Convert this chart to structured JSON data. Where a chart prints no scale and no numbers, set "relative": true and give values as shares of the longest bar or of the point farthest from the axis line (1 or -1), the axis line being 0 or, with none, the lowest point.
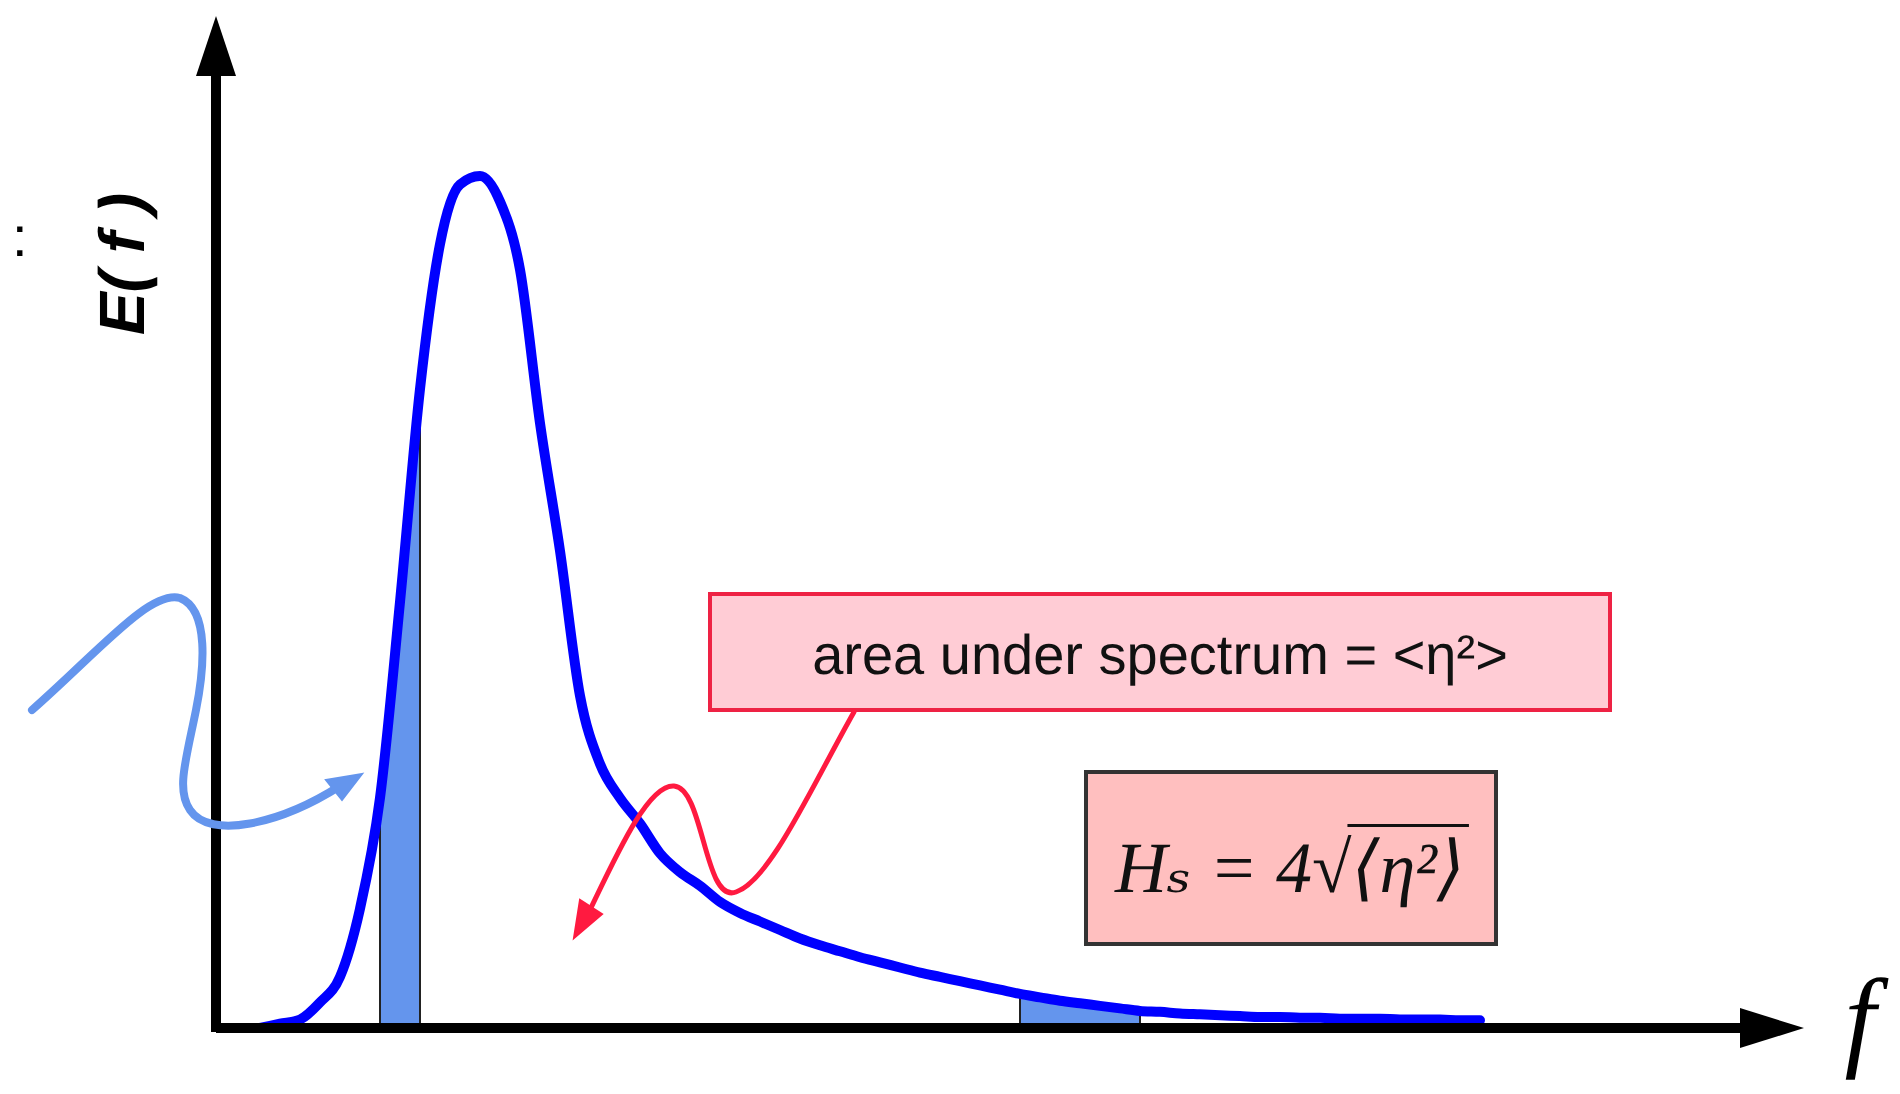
{
  "chart_data": {
    "type": "line",
    "relative": true,
    "xlabel": "f",
    "ylabel": "E( f )",
    "categories": [
      null,
      null,
      null,
      null,
      null,
      null,
      null,
      null,
      null,
      null,
      null,
      null,
      null,
      null,
      null,
      null,
      null,
      null,
      null,
      null,
      null,
      null,
      null,
      null,
      null,
      null,
      null,
      null,
      null,
      null,
      null,
      null,
      null,
      null,
      null,
      null,
      null,
      null,
      null,
      null,
      null,
      null,
      null,
      null,
      null,
      null,
      null,
      null,
      null,
      null,
      null,
      null,
      null,
      null,
      null,
      null,
      null,
      null,
      null,
      null,
      null,
      null
    ],
    "series": [
      {
        "color": "#0000ff",
        "values": [
          0,
          0.005,
          0.01,
          0.03,
          0.06,
          0.14,
          0.27,
          0.5,
          0.75,
          0.92,
          0.99,
          1,
          0.97,
          0.89,
          0.71,
          0.56,
          0.39,
          0.31,
          0.27,
          0.24,
          0.205,
          0.183,
          0.167,
          0.148,
          0.135,
          0.125,
          0.115,
          0.105,
          0.097,
          0.09,
          0.083,
          0.077,
          0.071,
          0.065,
          0.06,
          0.055,
          0.05,
          0.045,
          0.04,
          0.036,
          0.032,
          0.029,
          0.026,
          0.023,
          0.02,
          0.019,
          0.017,
          0.016,
          0.015,
          0.014,
          0.013,
          0.013,
          0.012,
          0.012,
          0.011,
          0.011,
          0.011,
          0.01,
          0.01,
          0.01,
          0.009,
          0.009
        ]
      },
      {
        "type": "area",
        "color": "#6495ed",
        "values": [
          null,
          null,
          null,
          null,
          null,
          null,
          0.27,
          0.5,
          0.75,
          null,
          null,
          null,
          null,
          null,
          null,
          null,
          null,
          null,
          null,
          null,
          null,
          null,
          null,
          null,
          null,
          null,
          null,
          null,
          null,
          null,
          null,
          null,
          null,
          null,
          null,
          null,
          null,
          null,
          0.04,
          0.036,
          0.032,
          0.029,
          0.026,
          0.023,
          0.02,
          null,
          null,
          null,
          null,
          null,
          null,
          null,
          null,
          null,
          null,
          null,
          null,
          null,
          null,
          null,
          null,
          null
        ]
      }
    ],
    "annotations": [
      ":",
      "area under spectrum = <η²>",
      "Hₛ = 4√⟨η²⟩"
    ]
  }
}
